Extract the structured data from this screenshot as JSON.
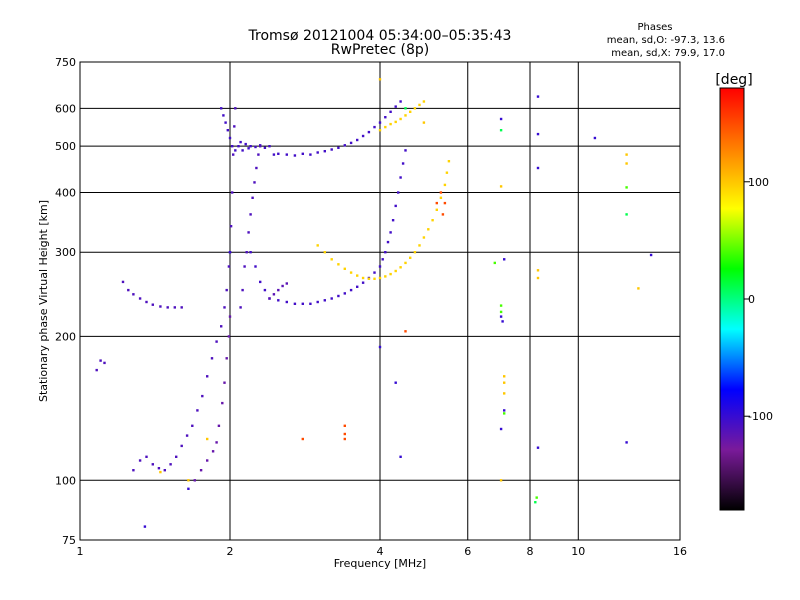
{
  "chart_data": {
    "type": "scatter",
    "title": "Tromsø 20121004 05:34:00–05:35:43",
    "subtitle": "RwPretec (8p)",
    "xlabel": "Frequency [MHz]",
    "ylabel": "Stationary phase Virtual Height [km]",
    "x_scale": "log",
    "y_scale": "log",
    "xlim": [
      1,
      16
    ],
    "ylim": [
      75,
      750
    ],
    "x_ticks": [
      "1",
      "2",
      "4",
      "6",
      "8",
      "10",
      "16"
    ],
    "y_ticks": [
      "75",
      "100",
      "200",
      "300",
      "400",
      "500",
      "600",
      "750"
    ],
    "x_tick_values": [
      1,
      2,
      4,
      6,
      8,
      10,
      16
    ],
    "y_tick_values": [
      75,
      100,
      200,
      300,
      400,
      500,
      600,
      750
    ],
    "x_gridlines": [
      2,
      4,
      6,
      8,
      10
    ],
    "y_gridlines": [
      100,
      200,
      300,
      400,
      500,
      600
    ],
    "grid": true,
    "stats": {
      "title": "Phases",
      "line_o": "mean, sd,O: -97.3, 13.6",
      "line_x": "mean, sd,X: 79.9, 17.0"
    },
    "colorbar": {
      "label": "[deg]",
      "ticks": [
        "100",
        "0",
        "-100"
      ],
      "tick_values": [
        100,
        0,
        -100
      ],
      "range": [
        -180,
        180
      ],
      "colors": [
        "#000000",
        "#7a1a9a",
        "#0000ff",
        "#00ffff",
        "#00ff00",
        "#ffff00",
        "#ff8000",
        "#ff0000"
      ]
    },
    "series": [
      {
        "phase": -110,
        "points": [
          [
            1.08,
            170
          ],
          [
            1.1,
            178
          ],
          [
            1.12,
            176
          ],
          [
            1.22,
            260
          ],
          [
            1.25,
            250
          ],
          [
            1.28,
            245
          ],
          [
            1.32,
            240
          ],
          [
            1.36,
            236
          ],
          [
            1.4,
            233
          ],
          [
            1.45,
            231
          ],
          [
            1.5,
            230
          ],
          [
            1.55,
            230
          ],
          [
            1.6,
            230
          ]
        ]
      },
      {
        "phase": -110,
        "points": [
          [
            1.28,
            105
          ],
          [
            1.32,
            110
          ],
          [
            1.36,
            112
          ],
          [
            1.4,
            108
          ],
          [
            1.44,
            106
          ],
          [
            1.48,
            105
          ],
          [
            1.52,
            108
          ],
          [
            1.56,
            112
          ],
          [
            1.6,
            118
          ],
          [
            1.64,
            124
          ],
          [
            1.68,
            130
          ],
          [
            1.72,
            140
          ],
          [
            1.76,
            150
          ],
          [
            1.8,
            165
          ],
          [
            1.84,
            180
          ],
          [
            1.88,
            195
          ],
          [
            1.92,
            210
          ],
          [
            1.95,
            230
          ],
          [
            1.97,
            250
          ],
          [
            1.99,
            280
          ],
          [
            2.0,
            300
          ],
          [
            2.01,
            340
          ],
          [
            2.02,
            400
          ],
          [
            2.03,
            480
          ],
          [
            2.04,
            550
          ],
          [
            2.05,
            600
          ]
        ]
      },
      {
        "phase": -120,
        "points": [
          [
            1.7,
            100
          ],
          [
            1.75,
            105
          ],
          [
            1.8,
            110
          ],
          [
            1.85,
            115
          ],
          [
            1.88,
            120
          ],
          [
            1.9,
            130
          ],
          [
            1.93,
            145
          ],
          [
            1.95,
            160
          ],
          [
            1.97,
            180
          ],
          [
            1.99,
            200
          ],
          [
            2.0,
            220
          ]
        ]
      },
      {
        "phase": -105,
        "points": [
          [
            1.92,
            600
          ],
          [
            1.94,
            580
          ],
          [
            1.96,
            560
          ],
          [
            1.98,
            540
          ],
          [
            2.0,
            520
          ],
          [
            2.02,
            500
          ],
          [
            2.05,
            490
          ],
          [
            2.08,
            500
          ],
          [
            2.1,
            510
          ],
          [
            2.12,
            490
          ],
          [
            2.15,
            505
          ],
          [
            2.18,
            495
          ],
          [
            2.2,
            500
          ],
          [
            2.25,
            498
          ],
          [
            2.3,
            502
          ],
          [
            2.35,
            496
          ],
          [
            2.4,
            500
          ],
          [
            2.45,
            480
          ],
          [
            2.5,
            482
          ],
          [
            2.6,
            480
          ],
          [
            2.7,
            478
          ],
          [
            2.8,
            482
          ],
          [
            2.9,
            480
          ],
          [
            3.0,
            485
          ],
          [
            3.1,
            488
          ],
          [
            3.2,
            492
          ],
          [
            3.3,
            496
          ],
          [
            3.4,
            502
          ],
          [
            3.5,
            508
          ],
          [
            3.6,
            515
          ],
          [
            3.7,
            525
          ],
          [
            3.8,
            535
          ],
          [
            3.9,
            548
          ],
          [
            4.0,
            560
          ],
          [
            4.1,
            575
          ],
          [
            4.2,
            590
          ],
          [
            4.3,
            605
          ],
          [
            4.4,
            620
          ]
        ]
      },
      {
        "phase": -105,
        "points": [
          [
            2.2,
            300
          ],
          [
            2.25,
            280
          ],
          [
            2.3,
            260
          ],
          [
            2.35,
            250
          ],
          [
            2.4,
            240
          ],
          [
            2.5,
            238
          ],
          [
            2.6,
            236
          ],
          [
            2.7,
            234
          ],
          [
            2.8,
            234
          ],
          [
            2.9,
            234
          ],
          [
            3.0,
            236
          ],
          [
            3.1,
            238
          ],
          [
            3.2,
            240
          ],
          [
            3.3,
            243
          ],
          [
            3.4,
            246
          ],
          [
            3.5,
            250
          ],
          [
            3.6,
            254
          ],
          [
            3.7,
            259
          ],
          [
            3.8,
            265
          ],
          [
            3.9,
            272
          ],
          [
            4.0,
            280
          ],
          [
            4.05,
            290
          ],
          [
            4.1,
            300
          ],
          [
            4.15,
            315
          ],
          [
            4.2,
            330
          ],
          [
            4.25,
            350
          ],
          [
            4.3,
            375
          ],
          [
            4.35,
            400
          ],
          [
            4.4,
            430
          ],
          [
            4.45,
            460
          ],
          [
            4.5,
            490
          ]
        ]
      },
      {
        "phase": -110,
        "points": [
          [
            2.1,
            230
          ],
          [
            2.12,
            250
          ],
          [
            2.14,
            280
          ],
          [
            2.16,
            300
          ],
          [
            2.18,
            330
          ],
          [
            2.2,
            360
          ],
          [
            2.22,
            390
          ],
          [
            2.24,
            420
          ],
          [
            2.26,
            450
          ],
          [
            2.28,
            480
          ],
          [
            2.3,
            500
          ]
        ]
      },
      {
        "phase": -115,
        "points": [
          [
            2.4,
            240
          ],
          [
            2.45,
            245
          ],
          [
            2.5,
            250
          ],
          [
            2.55,
            255
          ],
          [
            2.6,
            258
          ]
        ]
      },
      {
        "phase": 95,
        "points": [
          [
            3.0,
            310
          ],
          [
            3.1,
            300
          ],
          [
            3.2,
            290
          ],
          [
            3.3,
            283
          ],
          [
            3.4,
            277
          ],
          [
            3.5,
            272
          ],
          [
            3.6,
            268
          ],
          [
            3.7,
            265
          ],
          [
            3.8,
            264
          ],
          [
            3.9,
            264
          ],
          [
            4.0,
            265
          ],
          [
            4.1,
            267
          ],
          [
            4.2,
            270
          ],
          [
            4.3,
            274
          ],
          [
            4.4,
            279
          ],
          [
            4.5,
            285
          ],
          [
            4.6,
            292
          ],
          [
            4.7,
            300
          ],
          [
            4.8,
            310
          ],
          [
            4.9,
            322
          ],
          [
            5.0,
            335
          ],
          [
            5.1,
            350
          ],
          [
            5.2,
            368
          ],
          [
            5.3,
            390
          ],
          [
            5.4,
            415
          ],
          [
            5.45,
            440
          ],
          [
            5.5,
            465
          ]
        ]
      },
      {
        "phase": 95,
        "points": [
          [
            4.0,
            540
          ],
          [
            4.1,
            548
          ],
          [
            4.2,
            556
          ],
          [
            4.3,
            562
          ],
          [
            4.4,
            570
          ],
          [
            4.5,
            580
          ],
          [
            4.6,
            590
          ],
          [
            4.7,
            600
          ],
          [
            4.8,
            610
          ],
          [
            4.9,
            620
          ]
        ]
      },
      {
        "phase": 150,
        "points": [
          [
            5.2,
            380
          ],
          [
            5.3,
            400
          ],
          [
            5.4,
            380
          ],
          [
            5.35,
            360
          ]
        ]
      },
      {
        "phase": 150,
        "points": [
          [
            3.4,
            130
          ],
          [
            3.4,
            125
          ],
          [
            3.4,
            122
          ],
          [
            2.8,
            122
          ],
          [
            4.5,
            205
          ]
        ]
      },
      {
        "phase": 100,
        "points": [
          [
            1.8,
            122
          ],
          [
            1.45,
            104
          ],
          [
            1.65,
            100
          ],
          [
            4.0,
            690
          ],
          [
            4.9,
            560
          ],
          [
            7.0,
            412
          ],
          [
            8.3,
            275
          ],
          [
            8.3,
            265
          ],
          [
            7.1,
            165
          ],
          [
            7.1,
            160
          ],
          [
            7.1,
            152
          ],
          [
            7.0,
            100
          ],
          [
            12.5,
            480
          ],
          [
            12.5,
            460
          ],
          [
            13.2,
            252
          ]
        ]
      },
      {
        "phase": 40,
        "points": [
          [
            6.8,
            285
          ],
          [
            7.0,
            232
          ],
          [
            7.0,
            225
          ],
          [
            7.1,
            138
          ],
          [
            12.5,
            410
          ],
          [
            8.25,
            92
          ]
        ]
      },
      {
        "phase": -100,
        "points": [
          [
            1.35,
            80
          ],
          [
            1.65,
            96
          ],
          [
            2.0,
            300
          ],
          [
            4.0,
            190
          ],
          [
            4.3,
            160
          ],
          [
            4.4,
            112
          ],
          [
            7.0,
            570
          ],
          [
            7.1,
            290
          ],
          [
            7.1,
            140
          ],
          [
            7.0,
            128
          ],
          [
            8.3,
            635
          ],
          [
            8.3,
            530
          ],
          [
            8.3,
            450
          ],
          [
            8.3,
            117
          ],
          [
            10.8,
            520
          ],
          [
            12.5,
            120
          ],
          [
            14.0,
            296
          ],
          [
            7.0,
            220
          ],
          [
            7.05,
            215
          ]
        ]
      },
      {
        "phase": 10,
        "points": [
          [
            7.0,
            540
          ],
          [
            12.5,
            360
          ],
          [
            8.2,
            90
          ],
          [
            4.5,
            600
          ]
        ]
      }
    ]
  }
}
